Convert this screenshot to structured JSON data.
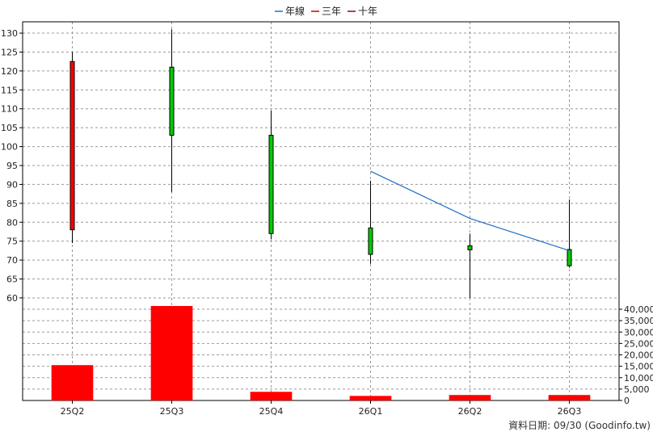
{
  "chart_data": {
    "type": "candlestick",
    "legend": [
      {
        "label": "年線",
        "color": "#1f6fc5"
      },
      {
        "label": "三年",
        "color": "#cc0000"
      },
      {
        "label": "十年",
        "color": "#880044"
      }
    ],
    "categories": [
      "25Q2",
      "25Q3",
      "25Q4",
      "26Q1",
      "26Q2",
      "26Q3"
    ],
    "price_ylim": [
      57,
      133
    ],
    "price_ticks": [
      60,
      65,
      70,
      75,
      80,
      85,
      90,
      95,
      100,
      105,
      110,
      115,
      120,
      125,
      130
    ],
    "candles": [
      {
        "period": "25Q2",
        "open": 78,
        "close": 122.5,
        "high": 125,
        "low": 74.5,
        "color": "#ff0000"
      },
      {
        "period": "25Q3",
        "open": 121,
        "close": 103,
        "high": 131,
        "low": 88,
        "color": "#00cc00"
      },
      {
        "period": "25Q4",
        "open": 103,
        "close": 77,
        "high": 109.5,
        "low": 75.5,
        "color": "#00cc00"
      },
      {
        "period": "26Q1",
        "open": 78.5,
        "close": 71.5,
        "high": 91,
        "low": 69,
        "color": "#00cc00"
      },
      {
        "period": "26Q2",
        "open": 73.8,
        "close": 72.7,
        "high": 77,
        "low": 60,
        "color": "#00cc00"
      },
      {
        "period": "26Q3",
        "open": 72.8,
        "close": 68.5,
        "high": 86,
        "low": 68,
        "color": "#00cc00"
      }
    ],
    "annual_line": [
      {
        "period": "26Q1",
        "value": 93.5
      },
      {
        "period": "26Q2",
        "value": 81
      },
      {
        "period": "26Q3",
        "value": 72.5
      }
    ],
    "volume_ylim": [
      0,
      40000
    ],
    "volume_ticks": [
      0,
      5000,
      10000,
      15000,
      20000,
      25000,
      30000,
      35000,
      40000
    ],
    "volume_tick_labels": [
      "0",
      "5,000",
      "10,000",
      "15,000",
      "20,000",
      "25,000",
      "30,000",
      "35,000",
      "40,000"
    ],
    "volumes": [
      {
        "period": "25Q2",
        "value": 15500
      },
      {
        "period": "25Q3",
        "value": 42000
      },
      {
        "period": "25Q4",
        "value": 3800
      },
      {
        "period": "26Q1",
        "value": 2000
      },
      {
        "period": "26Q2",
        "value": 2400
      },
      {
        "period": "26Q3",
        "value": 2400
      }
    ],
    "volume_color": "#ff0000",
    "grid": true,
    "legend_position": "top-center"
  },
  "footer": {
    "text": "資料日期: 09/30 (Goodinfo.tw)"
  }
}
